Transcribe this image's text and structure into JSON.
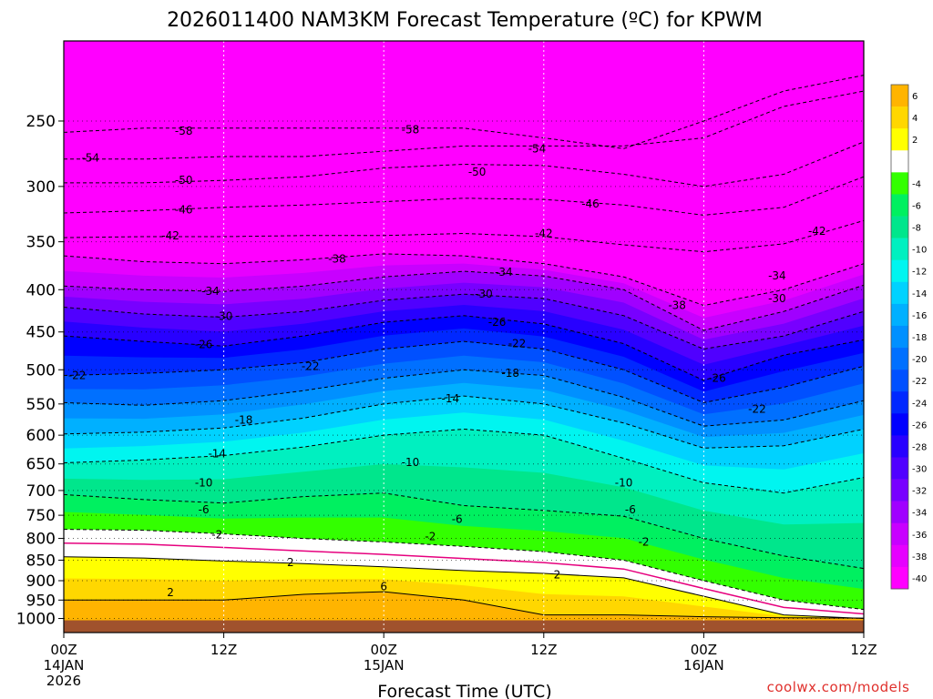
{
  "chart_data": {
    "type": "heatmap",
    "title": "2026011400 NAM3KM Forecast Temperature (ºC) for KPWM",
    "xlabel": "Forecast Time (UTC)",
    "ylabel": "",
    "credit": "coolwx.com/models",
    "x_range_hours": [
      0,
      60
    ],
    "x_ticks": [
      {
        "hour": 0,
        "label": "00Z",
        "sub1": "14JAN",
        "sub2": "2026"
      },
      {
        "hour": 12,
        "label": "12Z",
        "sub1": "",
        "sub2": ""
      },
      {
        "hour": 24,
        "label": "00Z",
        "sub1": "15JAN",
        "sub2": ""
      },
      {
        "hour": 36,
        "label": "12Z",
        "sub1": "",
        "sub2": ""
      },
      {
        "hour": 48,
        "label": "00Z",
        "sub1": "16JAN",
        "sub2": ""
      },
      {
        "hour": 60,
        "label": "12Z",
        "sub1": "",
        "sub2": ""
      }
    ],
    "y_axis": {
      "units": "hPa",
      "scale": "log",
      "top": 200,
      "bottom": 1040,
      "ticks": [
        250,
        300,
        350,
        400,
        450,
        500,
        550,
        600,
        650,
        700,
        750,
        800,
        850,
        900,
        950,
        1000
      ]
    },
    "colorbar": {
      "labels": [
        "6",
        "4",
        "2",
        "-4",
        "-6",
        "-8",
        "-10",
        "-12",
        "-14",
        "-16",
        "-18",
        "-20",
        "-22",
        "-24",
        "-26",
        "-28",
        "-30",
        "-32",
        "-34",
        "-36",
        "-38",
        "-40"
      ],
      "bins": [
        {
          "color": "#ffb400",
          "label": "6"
        },
        {
          "color": "#ffd700",
          "label": "4"
        },
        {
          "color": "#ffff00",
          "label": "2"
        },
        {
          "color": "#ffffff",
          "label": ""
        },
        {
          "color": "#33ff00",
          "label": "-4"
        },
        {
          "color": "#00f060",
          "label": "-6"
        },
        {
          "color": "#00e68c",
          "label": "-8"
        },
        {
          "color": "#00f0c0",
          "label": "-10"
        },
        {
          "color": "#00f5f0",
          "label": "-12"
        },
        {
          "color": "#00d2ff",
          "label": "-14"
        },
        {
          "color": "#00b0ff",
          "label": "-16"
        },
        {
          "color": "#0090ff",
          "label": "-18"
        },
        {
          "color": "#0070ff",
          "label": "-20"
        },
        {
          "color": "#0050ff",
          "label": "-22"
        },
        {
          "color": "#0028ff",
          "label": "-24"
        },
        {
          "color": "#0000ff",
          "label": "-26"
        },
        {
          "color": "#2800ff",
          "label": "-28"
        },
        {
          "color": "#5000ff",
          "label": "-30"
        },
        {
          "color": "#7800ff",
          "label": "-32"
        },
        {
          "color": "#a000ff",
          "label": "-34"
        },
        {
          "color": "#c800ff",
          "label": "-36"
        },
        {
          "color": "#e600ff",
          "label": "-38"
        },
        {
          "color": "#ff00ff",
          "label": "-40"
        }
      ]
    },
    "contour_levels": [
      -58,
      -54,
      -50,
      -46,
      -42,
      -38,
      -34,
      -30,
      -26,
      -22,
      -18,
      -14,
      -10,
      -6,
      -2,
      2,
      6
    ],
    "freezing_line_color": "#e6007e",
    "ground_color": "#a0522d",
    "profile_times": [
      0,
      6,
      12,
      18,
      24,
      30,
      36,
      42,
      48,
      54,
      60
    ],
    "level_pressures": {
      "-58": [
        258,
        255,
        255,
        255,
        255,
        255,
        262,
        270,
        250,
        230,
        220
      ],
      "-54": [
        278,
        278,
        276,
        276,
        272,
        268,
        268,
        268,
        262,
        240,
        230
      ],
      "-50": [
        297,
        297,
        295,
        292,
        285,
        282,
        283,
        290,
        300,
        290,
        265
      ],
      "-46": [
        323,
        321,
        318,
        316,
        313,
        310,
        311,
        316,
        325,
        318,
        292
      ],
      "-42": [
        346,
        345,
        345,
        344,
        344,
        342,
        345,
        353,
        360,
        352,
        330
      ],
      "-38": [
        364,
        370,
        372,
        368,
        362,
        364,
        372,
        386,
        418,
        400,
        372
      ],
      "-34": [
        396,
        400,
        402,
        396,
        386,
        380,
        385,
        400,
        448,
        425,
        395
      ],
      "-30": [
        420,
        428,
        432,
        425,
        412,
        405,
        410,
        430,
        472,
        455,
        425
      ],
      "-26": [
        455,
        462,
        468,
        455,
        438,
        430,
        440,
        465,
        515,
        480,
        460
      ],
      "-22": [
        508,
        505,
        500,
        490,
        472,
        462,
        472,
        500,
        548,
        525,
        495
      ],
      "-18": [
        548,
        552,
        545,
        530,
        512,
        500,
        508,
        540,
        585,
        575,
        545
      ],
      "-14": [
        598,
        595,
        588,
        572,
        550,
        538,
        550,
        580,
        622,
        618,
        590
      ],
      "-10": [
        648,
        643,
        635,
        620,
        600,
        590,
        600,
        640,
        685,
        705,
        675
      ],
      "-6": [
        708,
        718,
        725,
        712,
        705,
        730,
        740,
        752,
        800,
        840,
        870
      ],
      "-2": [
        780,
        782,
        790,
        800,
        808,
        818,
        830,
        850,
        900,
        950,
        975
      ],
      "2": [
        842,
        845,
        852,
        858,
        866,
        875,
        882,
        893,
        940,
        990,
        1000
      ],
      "6": [
        950,
        950,
        950,
        935,
        928,
        950,
        990,
        990,
        995,
        998,
        999
      ]
    },
    "contour_labels": [
      {
        "value": "-58",
        "t": 9,
        "p": 257
      },
      {
        "value": "-58",
        "t": 26,
        "p": 256
      },
      {
        "value": "-54",
        "t": 2,
        "p": 277
      },
      {
        "value": "-54",
        "t": 35.5,
        "p": 270
      },
      {
        "value": "-50",
        "t": 9,
        "p": 295
      },
      {
        "value": "-50",
        "t": 31,
        "p": 288
      },
      {
        "value": "-46",
        "t": 9,
        "p": 320
      },
      {
        "value": "-46",
        "t": 39.5,
        "p": 315
      },
      {
        "value": "-42",
        "t": 8,
        "p": 344
      },
      {
        "value": "-42",
        "t": 36,
        "p": 342
      },
      {
        "value": "-42",
        "t": 56.5,
        "p": 340
      },
      {
        "value": "-38",
        "t": 20.5,
        "p": 367
      },
      {
        "value": "-38",
        "t": 46,
        "p": 418
      },
      {
        "value": "-34",
        "t": 11,
        "p": 402
      },
      {
        "value": "-34",
        "t": 33,
        "p": 381
      },
      {
        "value": "-34",
        "t": 53.5,
        "p": 385
      },
      {
        "value": "-30",
        "t": 12,
        "p": 431
      },
      {
        "value": "-30",
        "t": 31.5,
        "p": 405
      },
      {
        "value": "-30",
        "t": 53.5,
        "p": 410
      },
      {
        "value": "-26",
        "t": 10.5,
        "p": 466
      },
      {
        "value": "-26",
        "t": 32.5,
        "p": 438
      },
      {
        "value": "-26",
        "t": 49,
        "p": 512
      },
      {
        "value": "-22",
        "t": 1,
        "p": 508
      },
      {
        "value": "-22",
        "t": 18.5,
        "p": 495
      },
      {
        "value": "-22",
        "t": 34,
        "p": 465
      },
      {
        "value": "-22",
        "t": 52,
        "p": 558
      },
      {
        "value": "-18",
        "t": 13.5,
        "p": 575
      },
      {
        "value": "-18",
        "t": 33.5,
        "p": 505
      },
      {
        "value": "-14",
        "t": 11.5,
        "p": 632
      },
      {
        "value": "-14",
        "t": 29,
        "p": 542
      },
      {
        "value": "-10",
        "t": 10.5,
        "p": 685
      },
      {
        "value": "-10",
        "t": 26,
        "p": 647
      },
      {
        "value": "-10",
        "t": 42,
        "p": 685
      },
      {
        "value": "-6",
        "t": 10.5,
        "p": 738
      },
      {
        "value": "-6",
        "t": 29.5,
        "p": 758
      },
      {
        "value": "-6",
        "t": 42.5,
        "p": 738
      },
      {
        "value": "-2",
        "t": 11.5,
        "p": 792
      },
      {
        "value": "-2",
        "t": 27.5,
        "p": 796
      },
      {
        "value": "-2",
        "t": 43.5,
        "p": 808
      },
      {
        "value": "2",
        "t": 8,
        "p": 930
      },
      {
        "value": "2",
        "t": 17,
        "p": 855
      },
      {
        "value": "2",
        "t": 37,
        "p": 885
      },
      {
        "value": "6",
        "t": 24,
        "p": 915
      }
    ]
  }
}
